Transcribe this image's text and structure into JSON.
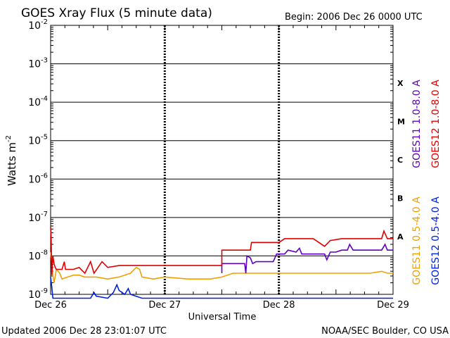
{
  "chart_data": {
    "type": "line",
    "title": "GOES Xray Flux (5 minute data)",
    "begin_label": "Begin:  2006 Dec 26 0000 UTC",
    "xlabel": "Universal Time",
    "ylabel": "Watts m",
    "ylabel_sup": "-2",
    "y_scale": "log",
    "ylim": [
      1e-09,
      0.01
    ],
    "xlim": [
      0,
      3
    ],
    "grid": true,
    "legend_placement": "right",
    "x_ticks": [
      {
        "x": 0,
        "label": "Dec 26"
      },
      {
        "x": 1,
        "label": "Dec 27"
      },
      {
        "x": 2,
        "label": "Dec 28"
      },
      {
        "x": 3,
        "label": "Dec 29"
      }
    ],
    "y_ticks": [
      {
        "exp": -2,
        "base": "10",
        "sup": "-2"
      },
      {
        "exp": -3,
        "base": "10",
        "sup": "-3"
      },
      {
        "exp": -4,
        "base": "10",
        "sup": "-4"
      },
      {
        "exp": -5,
        "base": "10",
        "sup": "-5"
      },
      {
        "exp": -6,
        "base": "10",
        "sup": "-6"
      },
      {
        "exp": -7,
        "base": "10",
        "sup": "-7"
      },
      {
        "exp": -8,
        "base": "10",
        "sup": "-8"
      },
      {
        "exp": -9,
        "base": "10",
        "sup": "-9"
      }
    ],
    "flare_classes": [
      {
        "label": "X",
        "exp": -3.5
      },
      {
        "label": "M",
        "exp": -4.5
      },
      {
        "label": "C",
        "exp": -5.5
      },
      {
        "label": "B",
        "exp": -6.5
      },
      {
        "label": "A",
        "exp": -7.5
      }
    ],
    "series": [
      {
        "name": "GOES11 0.5-4.0 A",
        "color": "#f0a000",
        "points": [
          [
            0,
            -7.9
          ],
          [
            0.01,
            -8.2
          ],
          [
            0.02,
            -8.5
          ],
          [
            0.03,
            -8.7
          ],
          [
            0.05,
            -8.35
          ],
          [
            0.08,
            -8.45
          ],
          [
            0.1,
            -8.6
          ],
          [
            0.15,
            -8.55
          ],
          [
            0.2,
            -8.5
          ],
          [
            0.25,
            -8.5
          ],
          [
            0.3,
            -8.55
          ],
          [
            0.4,
            -8.55
          ],
          [
            0.5,
            -8.6
          ],
          [
            0.6,
            -8.55
          ],
          [
            0.7,
            -8.45
          ],
          [
            0.75,
            -8.3
          ],
          [
            0.78,
            -8.35
          ],
          [
            0.8,
            -8.55
          ],
          [
            0.9,
            -8.6
          ],
          [
            1.0,
            -8.55
          ],
          [
            1.2,
            -8.6
          ],
          [
            1.4,
            -8.6
          ],
          [
            1.5,
            -8.55
          ],
          [
            1.6,
            -8.45
          ],
          [
            1.7,
            -8.45
          ],
          [
            1.8,
            -8.45
          ],
          [
            1.9,
            -8.45
          ],
          [
            2.0,
            -8.45
          ],
          [
            2.2,
            -8.45
          ],
          [
            2.4,
            -8.45
          ],
          [
            2.6,
            -8.45
          ],
          [
            2.8,
            -8.45
          ],
          [
            2.9,
            -8.4
          ],
          [
            2.95,
            -8.45
          ],
          [
            3.0,
            -8.45
          ]
        ]
      },
      {
        "name": "GOES12 0.5-4.0 A",
        "color": "#0020e0",
        "points": [
          [
            0,
            -8.55
          ],
          [
            0.01,
            -8.8
          ],
          [
            0.02,
            -9.1
          ],
          [
            0.1,
            -9.1
          ],
          [
            0.2,
            -9.1
          ],
          [
            0.3,
            -9.1
          ],
          [
            0.35,
            -9.1
          ],
          [
            0.38,
            -8.95
          ],
          [
            0.4,
            -9.05
          ],
          [
            0.5,
            -9.1
          ],
          [
            0.55,
            -8.95
          ],
          [
            0.58,
            -8.75
          ],
          [
            0.6,
            -8.9
          ],
          [
            0.65,
            -9.0
          ],
          [
            0.68,
            -8.85
          ],
          [
            0.7,
            -9.0
          ],
          [
            0.8,
            -9.1
          ],
          [
            1.0,
            -9.1
          ],
          [
            1.5,
            -9.1
          ],
          [
            2.0,
            -9.1
          ],
          [
            2.5,
            -9.1
          ],
          [
            3.0,
            -9.1
          ]
        ]
      },
      {
        "name": "GOES11 1.0-8.0 A",
        "color": "#6000c0",
        "points": [
          [
            1.5,
            -8.45
          ],
          [
            1.5,
            -8.2
          ],
          [
            1.65,
            -8.2
          ],
          [
            1.7,
            -8.2
          ],
          [
            1.71,
            -8.45
          ],
          [
            1.72,
            -8.0
          ],
          [
            1.75,
            -8.05
          ],
          [
            1.77,
            -8.2
          ],
          [
            1.8,
            -8.15
          ],
          [
            1.95,
            -8.15
          ],
          [
            1.98,
            -7.95
          ],
          [
            2.0,
            -7.95
          ],
          [
            2.05,
            -7.95
          ],
          [
            2.08,
            -7.85
          ],
          [
            2.15,
            -7.9
          ],
          [
            2.18,
            -7.8
          ],
          [
            2.2,
            -7.95
          ],
          [
            2.4,
            -7.95
          ],
          [
            2.42,
            -8.1
          ],
          [
            2.45,
            -7.9
          ],
          [
            2.5,
            -7.9
          ],
          [
            2.55,
            -7.85
          ],
          [
            2.6,
            -7.85
          ],
          [
            2.62,
            -7.7
          ],
          [
            2.65,
            -7.85
          ],
          [
            2.8,
            -7.85
          ],
          [
            2.9,
            -7.85
          ],
          [
            2.93,
            -7.7
          ],
          [
            2.95,
            -7.85
          ],
          [
            3.0,
            -7.85
          ]
        ]
      },
      {
        "name": "GOES12 1.0-8.0 A",
        "color": "#e00000",
        "points": [
          [
            0,
            -7.25
          ],
          [
            0.005,
            -7.55
          ],
          [
            0.01,
            -8.5
          ],
          [
            0.02,
            -8.0
          ],
          [
            0.03,
            -8.2
          ],
          [
            0.04,
            -8.3
          ],
          [
            0.05,
            -8.35
          ],
          [
            0.08,
            -8.35
          ],
          [
            0.1,
            -8.35
          ],
          [
            0.12,
            -8.15
          ],
          [
            0.13,
            -8.35
          ],
          [
            0.2,
            -8.35
          ],
          [
            0.25,
            -8.3
          ],
          [
            0.3,
            -8.45
          ],
          [
            0.35,
            -8.15
          ],
          [
            0.38,
            -8.45
          ],
          [
            0.45,
            -8.15
          ],
          [
            0.5,
            -8.3
          ],
          [
            0.6,
            -8.25
          ],
          [
            0.7,
            -8.25
          ],
          [
            0.8,
            -8.25
          ],
          [
            1.0,
            -8.25
          ],
          [
            1.2,
            -8.25
          ],
          [
            1.5,
            -8.25
          ],
          [
            1.5,
            -7.85
          ],
          [
            1.75,
            -7.85
          ],
          [
            1.76,
            -7.65
          ],
          [
            2.0,
            -7.65
          ],
          [
            2.05,
            -7.55
          ],
          [
            2.2,
            -7.55
          ],
          [
            2.3,
            -7.55
          ],
          [
            2.35,
            -7.65
          ],
          [
            2.4,
            -7.75
          ],
          [
            2.45,
            -7.6
          ],
          [
            2.55,
            -7.55
          ],
          [
            2.6,
            -7.55
          ],
          [
            2.7,
            -7.55
          ],
          [
            2.8,
            -7.55
          ],
          [
            2.9,
            -7.55
          ],
          [
            2.92,
            -7.35
          ],
          [
            2.95,
            -7.55
          ],
          [
            3.0,
            -7.55
          ]
        ]
      }
    ]
  },
  "footer": {
    "updated": "Updated 2006 Dec 28 23:01:07 UTC",
    "source": "NOAA/SEC Boulder, CO USA"
  }
}
